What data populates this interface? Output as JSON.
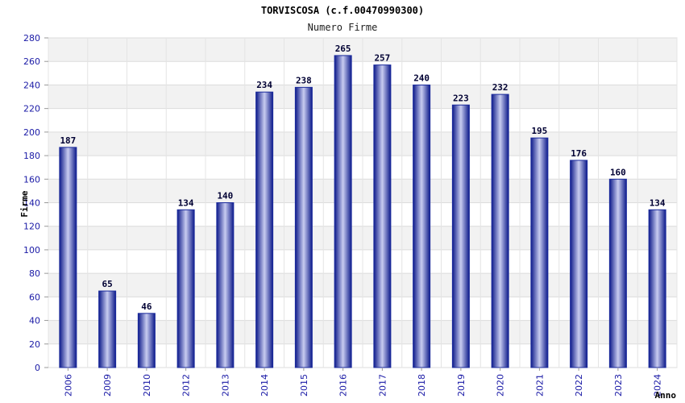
{
  "chart_data": {
    "type": "bar",
    "title": "TORVISCOSA (c.f.00470990300)",
    "subtitle": "Numero Firme",
    "ylabel": "Firme",
    "xlabel": "Anno",
    "categories": [
      "2006",
      "2009",
      "2010",
      "2012",
      "2013",
      "2014",
      "2015",
      "2016",
      "2017",
      "2018",
      "2019",
      "2020",
      "2021",
      "2022",
      "2023",
      "2024"
    ],
    "values": [
      187,
      65,
      46,
      134,
      140,
      234,
      238,
      265,
      257,
      240,
      223,
      232,
      195,
      176,
      160,
      134
    ],
    "ylim": [
      0,
      280
    ],
    "yticks": [
      0,
      20,
      40,
      60,
      80,
      100,
      120,
      140,
      160,
      180,
      200,
      220,
      240,
      260,
      280
    ],
    "grid": true,
    "bar_color": "#1a2a9c",
    "bar_highlight": "#c8ccf0",
    "tick_color": "#1a1aa6",
    "band_color": "#f2f2f2"
  }
}
